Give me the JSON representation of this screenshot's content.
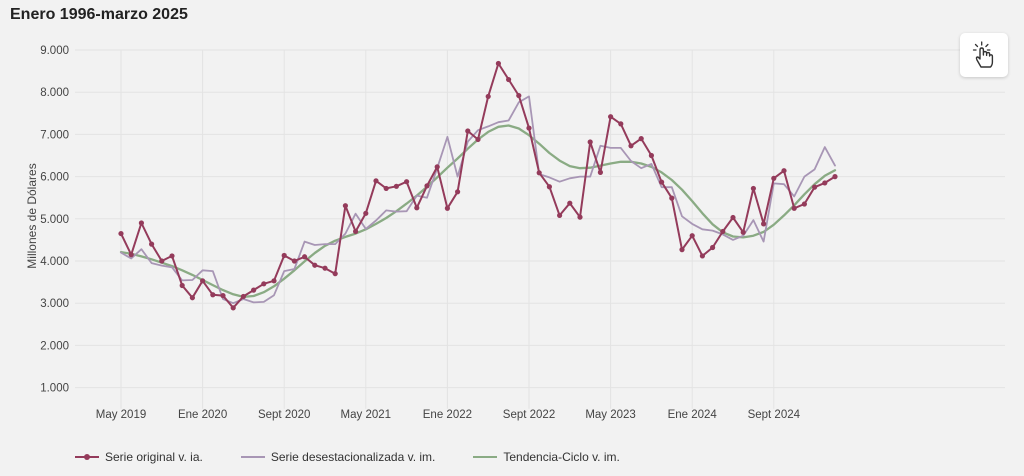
{
  "header": {
    "title": "Enero 1996-marzo 2025"
  },
  "toolbar": {
    "icon": "pointer-hand-icon"
  },
  "colors": {
    "original": "#943b5b",
    "desestacionalizada": "#a896b5",
    "tendencia": "#8aab84"
  },
  "chart_data": {
    "type": "line",
    "title": "Enero 1996-marzo 2025",
    "ylabel": "Millones de Dólares",
    "xlabel": "",
    "ylim": [
      500,
      9500
    ],
    "yticks": [
      1000,
      2000,
      3000,
      4000,
      5000,
      6000,
      7000,
      8000,
      9000
    ],
    "ytick_labels": [
      "1.000",
      "2.000",
      "3.000",
      "4.000",
      "5.000",
      "6.000",
      "7.000",
      "8.000",
      "9.000"
    ],
    "x_start": "2019-05",
    "xtick_labels": [
      {
        "label": "May 2019",
        "month": "2019-05"
      },
      {
        "label": "Ene 2020",
        "month": "2020-01"
      },
      {
        "label": "Sept 2020",
        "month": "2020-09"
      },
      {
        "label": "May 2021",
        "month": "2021-05"
      },
      {
        "label": "Ene 2022",
        "month": "2022-01"
      },
      {
        "label": "Sept 2022",
        "month": "2022-09"
      },
      {
        "label": "May 2023",
        "month": "2023-05"
      },
      {
        "label": "Ene 2024",
        "month": "2024-01"
      },
      {
        "label": "Sept 2024",
        "month": "2024-09"
      }
    ],
    "grid": true,
    "legend_position": "bottom-left",
    "series": [
      {
        "name": "Serie original v. ia.",
        "markers": true,
        "values": [
          4650,
          4150,
          4900,
          4400,
          4000,
          4120,
          3420,
          3130,
          3530,
          3200,
          3180,
          2890,
          3160,
          3310,
          3460,
          3530,
          4130,
          4000,
          4100,
          3900,
          3830,
          3700,
          5310,
          4700,
          5130,
          5900,
          5720,
          5770,
          5880,
          5260,
          5780,
          6230,
          5250,
          5640,
          7080,
          6880,
          7900,
          8680,
          8300,
          7920,
          7150,
          6090,
          5760,
          5080,
          5370,
          5040,
          6820,
          6100,
          7420,
          7250,
          6730,
          6900,
          6500,
          5870,
          5490,
          4270,
          4600,
          4120,
          4320,
          4700,
          5030,
          4680,
          5720,
          4880,
          5960,
          6140,
          5250,
          5350,
          5750,
          5850,
          6000
        ]
      },
      {
        "name": "Serie desestacionalizada v. im.",
        "markers": false,
        "values": [
          4200,
          4060,
          4280,
          3950,
          3890,
          3850,
          3540,
          3550,
          3780,
          3760,
          3100,
          3000,
          3100,
          3020,
          3030,
          3190,
          3760,
          3810,
          4460,
          4380,
          4400,
          4400,
          4650,
          5120,
          4760,
          4960,
          5200,
          5170,
          5180,
          5550,
          5500,
          6200,
          6940,
          6000,
          6830,
          7100,
          7190,
          7290,
          7330,
          7760,
          7900,
          6060,
          5980,
          5880,
          5960,
          6000,
          6000,
          6730,
          6680,
          6680,
          6370,
          6200,
          6300,
          5750,
          5750,
          5060,
          4880,
          4750,
          4720,
          4630,
          4500,
          4600,
          4970,
          4460,
          5840,
          5820,
          5530,
          6000,
          6170,
          6700,
          6260
        ]
      },
      {
        "name": "Tendencia-Ciclo v. im.",
        "markers": false,
        "values": [
          4210,
          4170,
          4110,
          4040,
          3960,
          3880,
          3780,
          3670,
          3550,
          3430,
          3310,
          3210,
          3150,
          3170,
          3260,
          3400,
          3580,
          3780,
          3990,
          4190,
          4360,
          4480,
          4570,
          4650,
          4750,
          4880,
          5020,
          5180,
          5360,
          5550,
          5760,
          5980,
          6210,
          6430,
          6660,
          6880,
          7060,
          7180,
          7210,
          7140,
          6980,
          6780,
          6560,
          6380,
          6250,
          6200,
          6210,
          6260,
          6310,
          6350,
          6350,
          6310,
          6230,
          6100,
          5920,
          5690,
          5420,
          5130,
          4870,
          4680,
          4580,
          4560,
          4600,
          4690,
          4860,
          5080,
          5320,
          5580,
          5820,
          6020,
          6150
        ]
      }
    ]
  }
}
